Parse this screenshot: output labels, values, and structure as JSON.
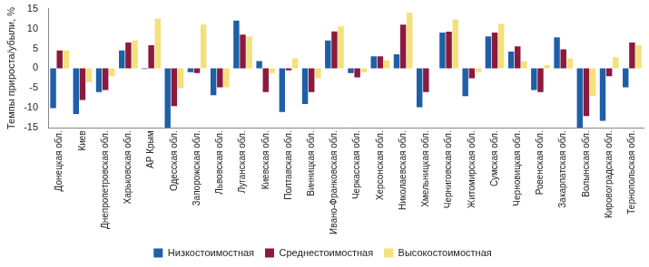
{
  "chart_data": {
    "type": "bar",
    "y_label": "Темпы прироста/убыли, %",
    "categories": [
      "Донецкая обл.",
      "Киев",
      "Днепропетровская обл.",
      "Харьковская обл.",
      "АР Крым",
      "Одесская обл.",
      "Запорожская обл.",
      "Львовская обл.",
      "Луганская обл.",
      "Киевская обл.",
      "Полтавская обл.",
      "Винницкая обл.",
      "Ивано-Франковская обл.",
      "Черкасская обл.",
      "Херсонская обл.",
      "Николаевская обл.",
      "Хмельницкая обл.",
      "Черниговская обл.",
      "Житомирская обл.",
      "Сумская обл.",
      "Черновицкая обл.",
      "Ровенская обл.",
      "Закарпатская обл.",
      "Волынская обл.",
      "Кировоградская обл.",
      "Тернопольская обл."
    ],
    "series": [
      {
        "name": "Низкостоимостная",
        "color": "#1f5fa8",
        "values": [
          -10,
          -11.5,
          -6,
          4.5,
          -0.2,
          -15,
          -1,
          -6.8,
          12,
          1.8,
          -11,
          -9,
          7,
          -1.2,
          3,
          3.5,
          -9.8,
          9,
          -7,
          8,
          4.2,
          -5.5,
          7.8,
          -15,
          -13.2,
          -4.8
        ]
      },
      {
        "name": "Среднестоимостная",
        "color": "#8b1a3c",
        "values": [
          4.5,
          -8,
          -5.5,
          6.5,
          5.8,
          -9.5,
          -1.2,
          -4.8,
          8.5,
          -6,
          -0.5,
          -6,
          9.3,
          -2.3,
          3,
          11,
          -6,
          9.2,
          -2.5,
          9,
          5.5,
          -6,
          4.8,
          -12,
          -2,
          6.5
        ]
      },
      {
        "name": "Высокостоимостная",
        "color": "#f5e07a",
        "values": [
          4.5,
          -3.5,
          -2,
          7,
          12.5,
          -5,
          11,
          -4.8,
          8,
          -1.2,
          2.5,
          -2.5,
          10.5,
          -1,
          2,
          14,
          0,
          12.3,
          -1,
          11.2,
          1.8,
          0.8,
          2.5,
          -7,
          2.8,
          5.8
        ]
      }
    ],
    "ylim": [
      -15,
      15
    ],
    "yticks": [
      -15,
      -10,
      -5,
      0,
      5,
      10,
      15
    ],
    "grid": false,
    "legend": "bottom"
  }
}
